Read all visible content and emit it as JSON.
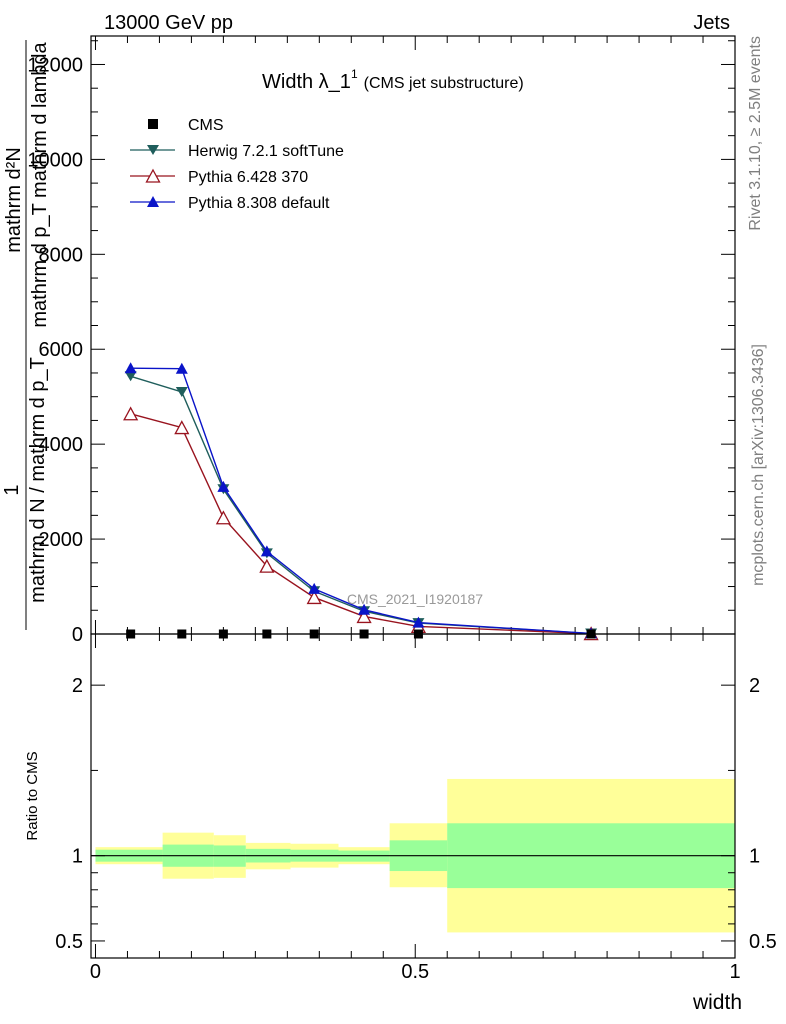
{
  "header": {
    "left": "13000 GeV pp",
    "right": "Jets"
  },
  "side_labels": {
    "rivet": "Rivet 3.1.10, ≥ 2.5M events",
    "mcplots": "mcplots.cern.ch [arXiv:1306.3436]"
  },
  "watermark": "CMS_2021_I1920187",
  "chart_data": {
    "type": "line",
    "title_main": "Width λ_1",
    "title_sup": "1",
    "title_note": "(CMS jet substructure)",
    "ylabel_top": "mathrm d²N",
    "ylabel_mid": "mathrm d p_T mathrm d lambda",
    "ylabel_one": "1",
    "ylabel_bottom": "mathrm d N / mathrm d p_T",
    "xlabel": "width",
    "xlim": [
      -0.007,
      1.0
    ],
    "ylim": [
      0,
      12600
    ],
    "y_ticks": [
      0,
      2000,
      4000,
      6000,
      8000,
      10000,
      12000
    ],
    "y_tick_labels": [
      "0",
      "2000",
      "4000",
      "6000",
      "8000",
      "10000",
      "12000"
    ],
    "x_ticks": [
      0,
      0.5,
      1
    ],
    "x_tick_labels": [
      "0",
      "0.5",
      "1"
    ],
    "legend_position": "top-left",
    "series": [
      {
        "name": "CMS",
        "color": "#000000",
        "marker": "square",
        "x": [
          0.055,
          0.135,
          0.2,
          0.268,
          0.342,
          0.42,
          0.505,
          0.775
        ],
        "y": [
          0,
          0,
          0,
          0,
          0,
          0,
          0,
          0
        ]
      },
      {
        "name": "Herwig 7.2.1 softTune",
        "color": "#1f5e5c",
        "marker": "triangle-down",
        "x": [
          0.055,
          0.135,
          0.2,
          0.268,
          0.342,
          0.42,
          0.505,
          0.775
        ],
        "y": [
          5430,
          5100,
          3050,
          1700,
          900,
          480,
          230,
          10
        ]
      },
      {
        "name": "Pythia 6.428 370",
        "color": "#99141f",
        "marker": "triangle-up-open",
        "x": [
          0.055,
          0.135,
          0.2,
          0.268,
          0.342,
          0.42,
          0.505,
          0.775
        ],
        "y": [
          4640,
          4350,
          2450,
          1430,
          770,
          370,
          160,
          8
        ]
      },
      {
        "name": "Pythia 8.308 default",
        "color": "#0a14c8",
        "marker": "triangle-up",
        "x": [
          0.055,
          0.135,
          0.2,
          0.268,
          0.342,
          0.42,
          0.505,
          0.775
        ],
        "y": [
          5600,
          5590,
          3100,
          1740,
          950,
          510,
          240,
          12
        ]
      }
    ],
    "ratio": {
      "ylabel": "Ratio to CMS",
      "ylim": [
        0.4,
        2.3
      ],
      "y_ticks": [
        0.5,
        1,
        2
      ],
      "y_tick_labels": [
        "0.5",
        "1",
        "2"
      ],
      "bands": [
        {
          "x0": 0.0,
          "x1": 0.105,
          "green": [
            0.965,
            1.035
          ],
          "yellow": [
            0.95,
            1.05
          ]
        },
        {
          "x0": 0.105,
          "x1": 0.185,
          "green": [
            0.935,
            1.065
          ],
          "yellow": [
            0.865,
            1.135
          ]
        },
        {
          "x0": 0.185,
          "x1": 0.235,
          "green": [
            0.935,
            1.06
          ],
          "yellow": [
            0.87,
            1.12
          ]
        },
        {
          "x0": 0.235,
          "x1": 0.305,
          "green": [
            0.96,
            1.04
          ],
          "yellow": [
            0.92,
            1.075
          ]
        },
        {
          "x0": 0.305,
          "x1": 0.38,
          "green": [
            0.965,
            1.035
          ],
          "yellow": [
            0.93,
            1.07
          ]
        },
        {
          "x0": 0.38,
          "x1": 0.46,
          "green": [
            0.965,
            1.03
          ],
          "yellow": [
            0.95,
            1.05
          ]
        },
        {
          "x0": 0.46,
          "x1": 0.55,
          "green": [
            0.91,
            1.09
          ],
          "yellow": [
            0.815,
            1.19
          ]
        },
        {
          "x0": 0.55,
          "x1": 1.0,
          "green": [
            0.81,
            1.19
          ],
          "yellow": [
            0.55,
            1.45
          ]
        }
      ]
    }
  }
}
